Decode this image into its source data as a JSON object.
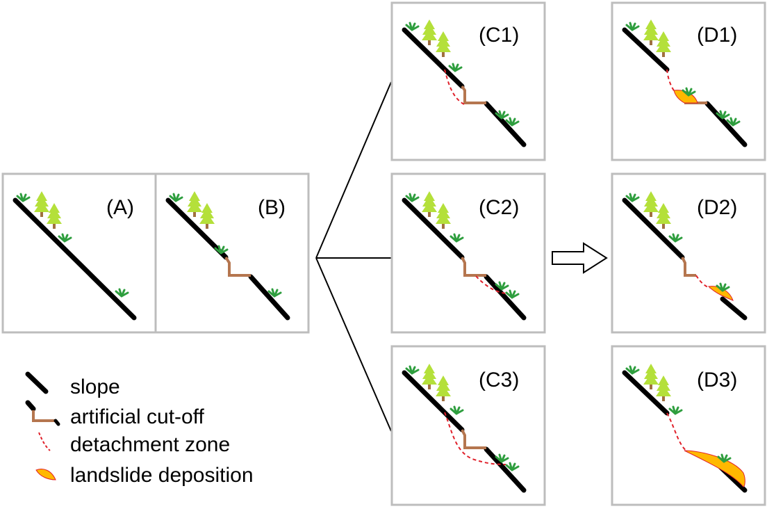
{
  "panels": {
    "A": "(A)",
    "B": "(B)",
    "C1": "(C1)",
    "C2": "(C2)",
    "C3": "(C3)",
    "D1": "(D1)",
    "D2": "(D2)",
    "D3": "(D3)"
  },
  "legend": {
    "slope": "slope",
    "cutoff": "artificial cut-off",
    "detachment": "detachment zone",
    "deposition": "landslide deposition"
  },
  "colors": {
    "slope": "#000000",
    "cutoff": "#b5764f",
    "detachment": "#e0202a",
    "deposition": "#ffb800",
    "tree": "#b4e03a",
    "trunk": "#a07040",
    "grass": "#2e9e3e",
    "panel_border": "#bdbdbd"
  }
}
